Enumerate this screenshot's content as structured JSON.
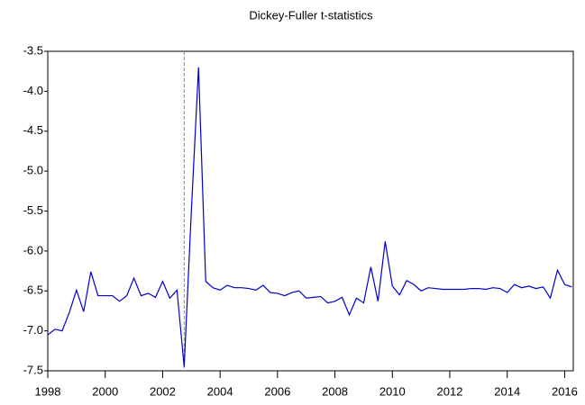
{
  "chart_data": {
    "type": "line",
    "title": "Dickey-Fuller t-statistics",
    "x": [
      1998,
      1998.25,
      1998.5,
      1998.75,
      1999,
      1999.25,
      1999.5,
      1999.75,
      2000,
      2000.25,
      2000.5,
      2000.75,
      2001,
      2001.25,
      2001.5,
      2001.75,
      2002,
      2002.25,
      2002.5,
      2002.75,
      2003,
      2003.25,
      2003.5,
      2003.75,
      2004,
      2004.25,
      2004.5,
      2004.75,
      2005,
      2005.25,
      2005.5,
      2005.75,
      2006,
      2006.25,
      2006.5,
      2006.75,
      2007,
      2007.25,
      2007.5,
      2007.75,
      2008,
      2008.25,
      2008.5,
      2008.75,
      2009,
      2009.25,
      2009.5,
      2009.75,
      2010,
      2010.25,
      2010.5,
      2010.75,
      2011,
      2011.25,
      2011.5,
      2011.75,
      2012,
      2012.25,
      2012.5,
      2012.75,
      2013,
      2013.25,
      2013.5,
      2013.75,
      2014,
      2014.25,
      2014.5,
      2014.75,
      2015,
      2015.25,
      2015.5,
      2015.75,
      2016,
      2016.25
    ],
    "series": [
      {
        "color": "#0000cc",
        "values": [
          -7.05,
          -6.98,
          -7.0,
          -6.77,
          -6.49,
          -6.76,
          -6.26,
          -6.56,
          -6.56,
          -6.56,
          -6.63,
          -6.56,
          -6.34,
          -6.56,
          -6.53,
          -6.58,
          -6.38,
          -6.59,
          -6.49,
          -7.45,
          -5.5,
          -3.7,
          -6.38,
          -6.46,
          -6.49,
          -6.43,
          -6.46,
          -6.46,
          -6.47,
          -6.49,
          -6.43,
          -6.52,
          -6.53,
          -6.56,
          -6.52,
          -6.5,
          -6.59,
          -6.58,
          -6.57,
          -6.65,
          -6.63,
          -6.58,
          -6.8,
          -6.59,
          -6.65,
          -6.2,
          -6.63,
          -5.88,
          -6.44,
          -6.55,
          -6.37,
          -6.42,
          -6.5,
          -6.46,
          -6.47,
          -6.48,
          -6.48,
          -6.48,
          -6.48,
          -6.47,
          -6.47,
          -6.48,
          -6.46,
          -6.47,
          -6.52,
          -6.42,
          -6.46,
          -6.44,
          -6.47,
          -6.45,
          -6.59,
          -6.24,
          -6.42,
          -6.45
        ]
      }
    ],
    "vline": 2002.75,
    "xlim": [
      1998,
      2016.3
    ],
    "xticks": [
      1998,
      2000,
      2002,
      2004,
      2006,
      2008,
      2010,
      2012,
      2014,
      2016
    ],
    "ylim": [
      -7.5,
      -3.5
    ],
    "yticks": [
      -7.5,
      {
        "value": -7,
        "label": "-7.0"
      },
      -6.5,
      {
        "value": -6,
        "label": "-6.0"
      },
      -5.5,
      {
        "value": -5,
        "label": "-5.0"
      },
      -4.5,
      {
        "value": -4,
        "label": "-4.0"
      },
      -3.5
    ]
  }
}
